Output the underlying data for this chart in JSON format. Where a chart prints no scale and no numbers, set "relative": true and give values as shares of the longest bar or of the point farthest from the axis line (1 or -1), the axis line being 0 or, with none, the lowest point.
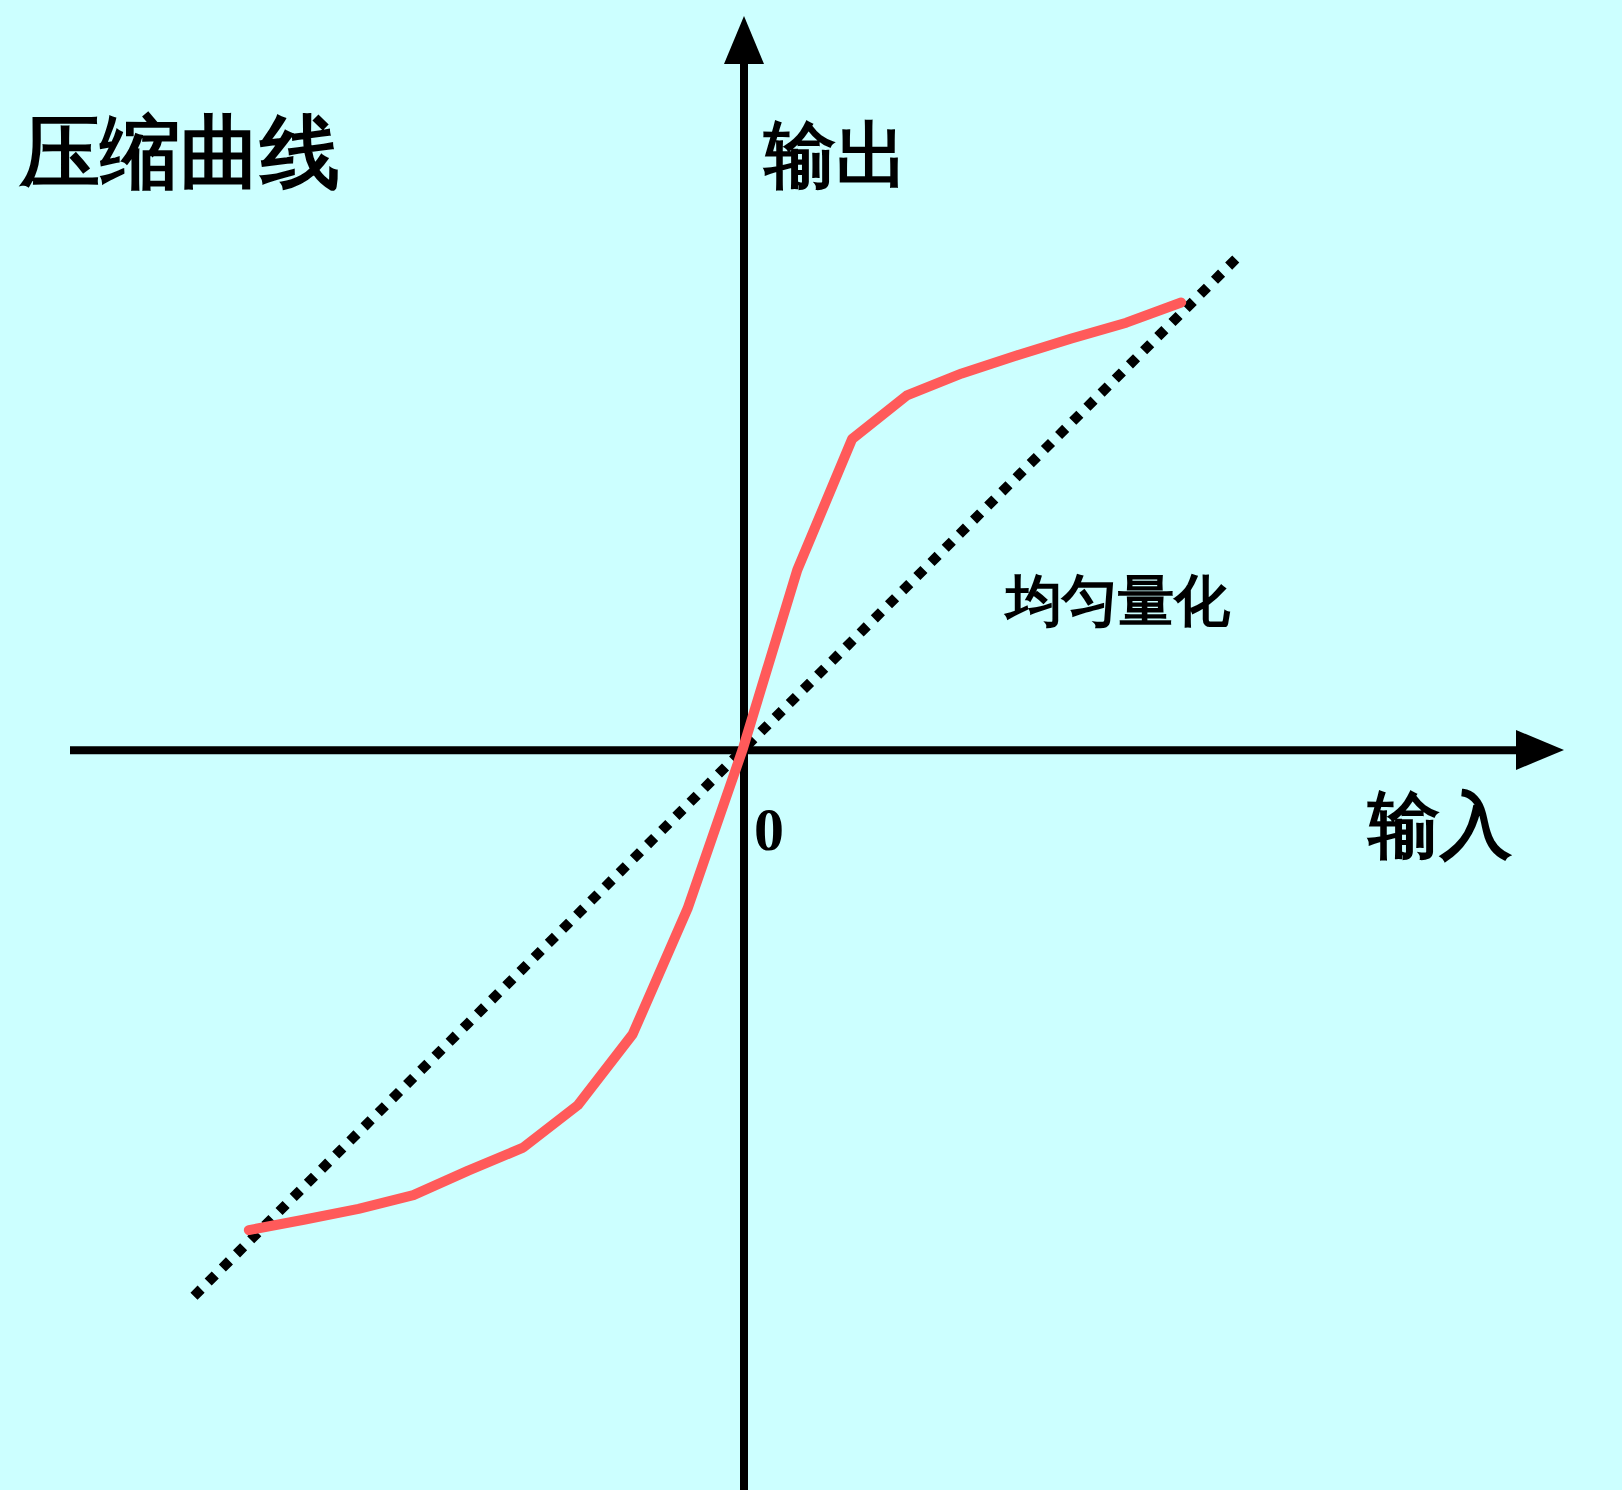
{
  "chart_data": {
    "type": "line",
    "title": "压缩曲线",
    "xlabel": "输入",
    "ylabel": "输出",
    "relative": true,
    "legend": false,
    "annotations": [
      "0"
    ],
    "categories": [
      null,
      null,
      null,
      null,
      null,
      null,
      null,
      null,
      null,
      null,
      null,
      null,
      null,
      null,
      null,
      null,
      null,
      null,
      null,
      null
    ],
    "series": [
      {
        "color": "#ff5a5a",
        "line_style": "solid",
        "values": [
          null,
          -0.879,
          -0.86,
          -0.84,
          -0.815,
          -0.77,
          -0.728,
          -0.65,
          -0.52,
          -0.29,
          0,
          0.33,
          0.57,
          0.65,
          0.69,
          0.723,
          0.754,
          0.783,
          0.82,
          null
        ]
      },
      {
        "name": "均匀量化",
        "color": "#000000",
        "line_style": "dotted",
        "values": [
          -1,
          -0.9,
          -0.8,
          -0.7,
          -0.6,
          -0.5,
          -0.4,
          -0.3,
          -0.2,
          -0.1,
          0,
          0.1,
          0.2,
          0.3,
          0.4,
          0.5,
          0.6,
          0.7,
          0.8,
          0.9
        ]
      }
    ]
  }
}
